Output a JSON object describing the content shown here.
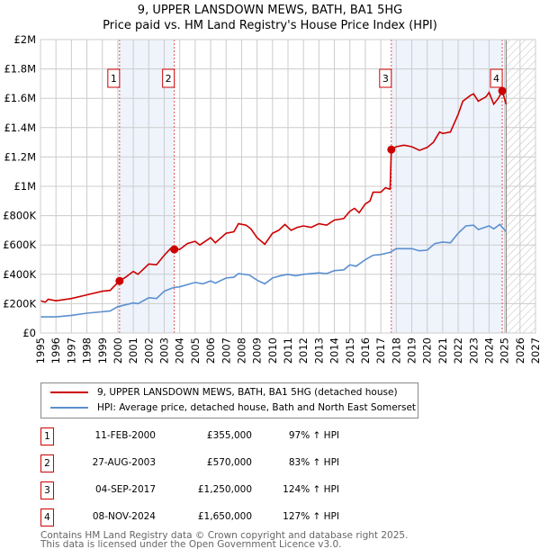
{
  "chart_data": {
    "type": "line",
    "title": "9, UPPER LANSDOWN MEWS, BATH, BA1 5HG",
    "subtitle": "Price paid vs. HM Land Registry's House Price Index (HPI)",
    "xlim": [
      1995,
      2027
    ],
    "ylim": [
      0,
      2000000
    ],
    "yticks": [
      {
        "v": 0,
        "l": "£0"
      },
      {
        "v": 200000,
        "l": "£200K"
      },
      {
        "v": 400000,
        "l": "£400K"
      },
      {
        "v": 600000,
        "l": "£600K"
      },
      {
        "v": 800000,
        "l": "£800K"
      },
      {
        "v": 1000000,
        "l": "£1M"
      },
      {
        "v": 1200000,
        "l": "£1.2M"
      },
      {
        "v": 1400000,
        "l": "£1.4M"
      },
      {
        "v": 1600000,
        "l": "£1.6M"
      },
      {
        "v": 1800000,
        "l": "£1.8M"
      },
      {
        "v": 2000000,
        "l": "£2M"
      }
    ],
    "xticks": [
      "1995",
      "1996",
      "1997",
      "1998",
      "1999",
      "2000",
      "2001",
      "2002",
      "2003",
      "2004",
      "2005",
      "2006",
      "2007",
      "2008",
      "2009",
      "2010",
      "2011",
      "2012",
      "2013",
      "2014",
      "2015",
      "2016",
      "2017",
      "2018",
      "2019",
      "2020",
      "2021",
      "2022",
      "2023",
      "2024",
      "2025",
      "2026",
      "2027"
    ],
    "grid": true,
    "forecast_start": 2025.1,
    "series": [
      {
        "name": "9, UPPER LANSDOWN MEWS, BATH, BA1 5HG (detached house)",
        "color": "#cc0000",
        "points": [
          [
            1995,
            220
          ],
          [
            1995.3,
            210
          ],
          [
            1995.5,
            230
          ],
          [
            1996,
            220
          ],
          [
            1997,
            235
          ],
          [
            1998,
            260
          ],
          [
            1999,
            285
          ],
          [
            1999.5,
            290
          ],
          [
            2000.1,
            355
          ],
          [
            2000.5,
            380
          ],
          [
            2001,
            420
          ],
          [
            2001.3,
            400
          ],
          [
            2002,
            470
          ],
          [
            2002.5,
            465
          ],
          [
            2003,
            530
          ],
          [
            2003.4,
            575
          ],
          [
            2003.65,
            570
          ],
          [
            2004,
            570
          ],
          [
            2004.5,
            610
          ],
          [
            2005,
            625
          ],
          [
            2005.3,
            600
          ],
          [
            2006,
            650
          ],
          [
            2006.3,
            615
          ],
          [
            2007,
            680
          ],
          [
            2007.5,
            690
          ],
          [
            2007.8,
            745
          ],
          [
            2008.3,
            735
          ],
          [
            2008.6,
            710
          ],
          [
            2009,
            650
          ],
          [
            2009.5,
            605
          ],
          [
            2010,
            680
          ],
          [
            2010.4,
            700
          ],
          [
            2010.8,
            740
          ],
          [
            2011.2,
            700
          ],
          [
            2011.6,
            720
          ],
          [
            2012,
            730
          ],
          [
            2012.5,
            720
          ],
          [
            2013,
            745
          ],
          [
            2013.5,
            735
          ],
          [
            2014,
            770
          ],
          [
            2014.6,
            780
          ],
          [
            2015,
            830
          ],
          [
            2015.3,
            850
          ],
          [
            2015.6,
            820
          ],
          [
            2016,
            880
          ],
          [
            2016.3,
            900
          ],
          [
            2016.5,
            960
          ],
          [
            2017,
            960
          ],
          [
            2017.3,
            990
          ],
          [
            2017.6,
            980
          ],
          [
            2017.68,
            1250
          ],
          [
            2018,
            1270
          ],
          [
            2018.5,
            1280
          ],
          [
            2019,
            1270
          ],
          [
            2019.5,
            1245
          ],
          [
            2020,
            1265
          ],
          [
            2020.4,
            1300
          ],
          [
            2020.8,
            1370
          ],
          [
            2021,
            1360
          ],
          [
            2021.5,
            1370
          ],
          [
            2022,
            1490
          ],
          [
            2022.3,
            1580
          ],
          [
            2022.8,
            1620
          ],
          [
            2023,
            1630
          ],
          [
            2023.3,
            1580
          ],
          [
            2023.8,
            1610
          ],
          [
            2024,
            1640
          ],
          [
            2024.3,
            1560
          ],
          [
            2024.6,
            1600
          ],
          [
            2024.85,
            1650
          ],
          [
            2025.1,
            1560
          ]
        ]
      },
      {
        "name": "HPI: Average price, detached house, Bath and North East Somerset",
        "color": "#5b8fd0",
        "points": [
          [
            1995,
            110
          ],
          [
            1996,
            110
          ],
          [
            1997,
            120
          ],
          [
            1998,
            135
          ],
          [
            1999,
            145
          ],
          [
            1999.5,
            150
          ],
          [
            2000,
            180
          ],
          [
            2001,
            205
          ],
          [
            2001.3,
            200
          ],
          [
            2002,
            240
          ],
          [
            2002.5,
            235
          ],
          [
            2003,
            285
          ],
          [
            2003.6,
            310
          ],
          [
            2004,
            315
          ],
          [
            2005,
            345
          ],
          [
            2005.5,
            335
          ],
          [
            2006,
            355
          ],
          [
            2006.3,
            340
          ],
          [
            2007,
            375
          ],
          [
            2007.5,
            380
          ],
          [
            2007.8,
            405
          ],
          [
            2008.5,
            395
          ],
          [
            2009,
            360
          ],
          [
            2009.5,
            335
          ],
          [
            2010,
            375
          ],
          [
            2010.5,
            390
          ],
          [
            2011,
            400
          ],
          [
            2011.5,
            390
          ],
          [
            2012,
            400
          ],
          [
            2013,
            410
          ],
          [
            2013.5,
            405
          ],
          [
            2014,
            425
          ],
          [
            2014.6,
            430
          ],
          [
            2015,
            465
          ],
          [
            2015.4,
            455
          ],
          [
            2016,
            500
          ],
          [
            2016.5,
            530
          ],
          [
            2017,
            535
          ],
          [
            2017.6,
            550
          ],
          [
            2018,
            575
          ],
          [
            2019,
            575
          ],
          [
            2019.5,
            560
          ],
          [
            2020,
            565
          ],
          [
            2020.5,
            610
          ],
          [
            2021,
            620
          ],
          [
            2021.5,
            615
          ],
          [
            2022,
            680
          ],
          [
            2022.5,
            730
          ],
          [
            2023,
            735
          ],
          [
            2023.3,
            705
          ],
          [
            2024,
            730
          ],
          [
            2024.3,
            710
          ],
          [
            2024.7,
            740
          ],
          [
            2025.1,
            690
          ]
        ]
      }
    ],
    "sales": [
      {
        "n": "1",
        "x": 2000.11,
        "price": 355000,
        "date": "11-FEB-2000",
        "price_label": "£355,000",
        "hpi": "97% ↑ HPI"
      },
      {
        "n": "2",
        "x": 2003.65,
        "price": 570000,
        "date": "27-AUG-2003",
        "price_label": "£570,000",
        "hpi": "83% ↑ HPI"
      },
      {
        "n": "3",
        "x": 2017.68,
        "price": 1250000,
        "date": "04-SEP-2017",
        "price_label": "£1,250,000",
        "hpi": "124% ↑ HPI"
      },
      {
        "n": "4",
        "x": 2024.85,
        "price": 1650000,
        "date": "08-NOV-2024",
        "price_label": "£1,650,000",
        "hpi": "127% ↑ HPI"
      }
    ],
    "legend_position": "below"
  },
  "footer": {
    "line1": "Contains HM Land Registry data © Crown copyright and database right 2025.",
    "line2": "This data is licensed under the Open Government Licence v3.0."
  }
}
